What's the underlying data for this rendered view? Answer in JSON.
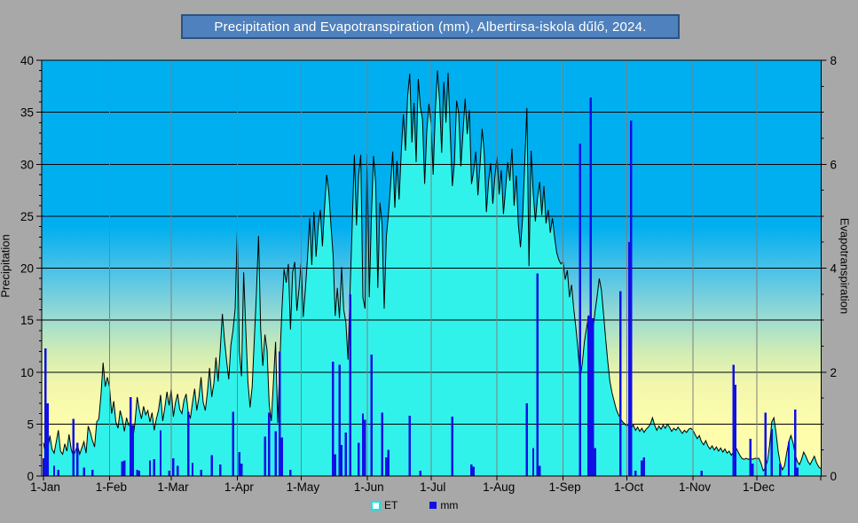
{
  "title": "Precipitation and Evapotranspiration (mm), Albertirsa-iskola dűlő, 2024.",
  "colors": {
    "page_background": "#A8A8A8",
    "title_fill": "#4E81BD",
    "title_border": "#2B5381",
    "title_text": "#FFFFFF",
    "plot_gradient_top": "#00AFF0",
    "plot_gradient_mid": "#9BDBD2",
    "plot_gradient_bottom": "#FDFDAC",
    "et_area_fill": "#31F2EA",
    "et_area_outline": "#000000",
    "precip_bar": "#1010E6",
    "h_gridline": "#000000",
    "v_gridline": "#7F7F7F",
    "axis_text": "#000000"
  },
  "legend": {
    "items": [
      {
        "label": "ET",
        "swatch": "cyan-outline-square"
      },
      {
        "label": "mm",
        "swatch": "blue-solid-square"
      }
    ]
  },
  "chart_data": {
    "type": "combo-area-bar",
    "title": "Precipitation and Evapotranspiration (mm), Albertirsa-iskola dűlő, 2024.",
    "x_axis": {
      "unit": "day of year 2024",
      "days_in_year": 366,
      "tick_days": [
        1,
        32,
        61,
        92,
        122,
        153,
        183,
        214,
        245,
        275,
        306,
        336
      ],
      "tick_labels": [
        "1-Jan",
        "1-Feb",
        "1-Mar",
        "1-Apr",
        "1-May",
        "1-Jun",
        "1-Jul",
        "1-Aug",
        "1-Sep",
        "1-Oct",
        "1-Nov",
        "1-Dec"
      ]
    },
    "y_left": {
      "label": "Precipitation",
      "min": 0,
      "max": 40,
      "major_ticks": [
        0,
        5,
        10,
        15,
        20,
        25,
        30,
        35,
        40
      ],
      "minor_step": 1,
      "gridlines": [
        5,
        10,
        15,
        20,
        25,
        30,
        35
      ]
    },
    "y_right": {
      "label": "Evapotranspiration",
      "min": 0,
      "max": 8,
      "major_ticks": [
        0,
        2,
        4,
        6,
        8
      ],
      "minor_step": 0.5
    },
    "series": [
      {
        "name": "ET",
        "type": "area",
        "axis": "right",
        "daily_values": [
          0.64,
          0.42,
          0.52,
          0.78,
          0.52,
          0.44,
          0.66,
          0.88,
          0.48,
          0.42,
          0.62,
          0.48,
          0.8,
          0.52,
          0.38,
          0.48,
          0.6,
          0.42,
          0.54,
          0.66,
          0.44,
          0.96,
          0.84,
          0.68,
          0.56,
          1.04,
          1.1,
          1.56,
          2.18,
          1.72,
          1.9,
          1.72,
          1.2,
          1.44,
          1.04,
          0.92,
          1.26,
          1.1,
          0.86,
          1.12,
          0.98,
          1.06,
          0.72,
          1.04,
          1.52,
          1.28,
          1.1,
          1.34,
          1.18,
          1.26,
          1.04,
          1.22,
          0.88,
          1.1,
          1.26,
          1.56,
          1.06,
          1.32,
          1.62,
          1.36,
          1.68,
          1.14,
          1.42,
          1.58,
          1.28,
          1.2,
          1.46,
          1.58,
          1.22,
          1.12,
          1.42,
          1.68,
          1.26,
          1.52,
          1.9,
          1.42,
          1.26,
          1.62,
          2.08,
          1.52,
          1.78,
          2.28,
          1.82,
          2.42,
          3.12,
          2.62,
          2.22,
          1.86,
          2.52,
          2.8,
          3.22,
          4.68,
          2.4,
          1.92,
          3.92,
          2.82,
          1.82,
          1.32,
          1.72,
          2.62,
          3.52,
          4.62,
          2.82,
          2.12,
          2.72,
          2.42,
          1.38,
          1.06,
          1.82,
          2.58,
          1.02,
          2.22,
          3.22,
          3.98,
          3.72,
          4.08,
          2.82,
          3.92,
          4.12,
          3.18,
          3.6,
          4.1,
          3.06,
          3.6,
          4.2,
          4.96,
          4.06,
          5.08,
          4.22,
          4.8,
          5.12,
          4.42,
          5.18,
          5.8,
          5.46,
          4.82,
          4.26,
          3.08,
          3.62,
          3.04,
          4.02,
          3.2,
          2.96,
          2.24,
          3.58,
          4.86,
          6.18,
          4.82,
          5.78,
          6.18,
          3.44,
          3.22,
          6.2,
          3.44,
          5.02,
          6.16,
          5.64,
          3.62,
          5.26,
          4.84,
          3.22,
          4.6,
          5.04,
          5.6,
          6.24,
          5.16,
          6.06,
          5.32,
          6.22,
          6.96,
          6.26,
          7.3,
          7.74,
          6.42,
          7.18,
          6.04,
          7.64,
          7.1,
          6.86,
          5.62,
          6.64,
          7.16,
          6.78,
          5.8,
          7.02,
          7.8,
          7.24,
          6.22,
          7.58,
          6.8,
          7.76,
          6.62,
          5.58,
          6.04,
          7.22,
          6.98,
          5.96,
          6.6,
          7.26,
          6.58,
          7.04,
          5.62,
          5.86,
          6.24,
          5.4,
          5.98,
          6.68,
          6.2,
          5.08,
          5.66,
          6.02,
          5.24,
          5.76,
          6.16,
          5.42,
          5.88,
          5.04,
          5.52,
          6.04,
          5.68,
          6.3,
          5.2,
          5.78,
          4.84,
          4.4,
          4.96,
          6.02,
          7.08,
          4.04,
          6.26,
          5.44,
          4.9,
          5.36,
          5.66,
          5.02,
          5.58,
          4.86,
          5.12,
          4.68,
          4.96,
          4.6,
          4.3,
          4.16,
          4.08,
          4.12,
          3.78,
          3.96,
          3.44,
          3.68,
          3.22,
          2.86,
          2.44,
          1.88,
          2.16,
          2.58,
          2.84,
          3.08,
          3.04,
          2.8,
          3.16,
          3.46,
          3.8,
          3.58,
          3.12,
          2.64,
          2.2,
          1.82,
          1.6,
          1.44,
          1.28,
          1.18,
          1.1,
          1.04,
          1.0,
          0.96,
          1.0,
          0.92,
          0.98,
          0.88,
          0.94,
          0.86,
          0.92,
          0.84,
          0.9,
          0.94,
          1.0,
          1.12,
          0.98,
          0.88,
          0.96,
          0.9,
          0.98,
          0.92,
          1.0,
          0.94,
          0.86,
          0.92,
          0.88,
          0.94,
          0.88,
          0.82,
          0.88,
          0.84,
          0.9,
          0.92,
          0.88,
          0.8,
          0.72,
          0.78,
          0.66,
          0.6,
          0.68,
          0.58,
          0.52,
          0.58,
          0.5,
          0.56,
          0.48,
          0.54,
          0.46,
          0.52,
          0.44,
          0.48,
          0.4,
          0.46,
          0.56,
          0.48,
          0.4,
          0.34,
          0.32,
          0.34,
          0.32,
          0.34,
          0.32,
          0.34,
          0.34,
          0.34,
          0.24,
          0.1,
          0.16,
          0.3,
          0.6,
          1.04,
          1.12,
          0.84,
          0.48,
          0.24,
          0.12,
          0.2,
          0.44,
          0.66,
          0.78,
          0.64,
          0.42,
          0.28,
          0.22,
          0.32,
          0.46,
          0.38,
          0.28,
          0.22,
          0.3,
          0.38,
          0.26,
          0.18,
          0.14
        ]
      },
      {
        "name": "mm",
        "type": "bar",
        "axis": "left",
        "points": [
          [
            1,
            1.7
          ],
          [
            2,
            12.3
          ],
          [
            3,
            7.0
          ],
          [
            6,
            1.0
          ],
          [
            8,
            0.6
          ],
          [
            15,
            5.5
          ],
          [
            17,
            3.2
          ],
          [
            20,
            0.8
          ],
          [
            24,
            0.6
          ],
          [
            38,
            1.4
          ],
          [
            39,
            1.5
          ],
          [
            42,
            7.6
          ],
          [
            43,
            4.9
          ],
          [
            45,
            0.6
          ],
          [
            46,
            0.5
          ],
          [
            51,
            1.5
          ],
          [
            53,
            1.6
          ],
          [
            56,
            4.4
          ],
          [
            60,
            0.5
          ],
          [
            62,
            1.7
          ],
          [
            64,
            1.0
          ],
          [
            69,
            6.2
          ],
          [
            71,
            1.3
          ],
          [
            75,
            0.6
          ],
          [
            80,
            2.0
          ],
          [
            84,
            1.1
          ],
          [
            90,
            6.2
          ],
          [
            93,
            2.3
          ],
          [
            94,
            1.2
          ],
          [
            105,
            3.8
          ],
          [
            107,
            6.1
          ],
          [
            110,
            4.3
          ],
          [
            112,
            12.0
          ],
          [
            113,
            3.7
          ],
          [
            117,
            0.6
          ],
          [
            137,
            11.0
          ],
          [
            138,
            2.1
          ],
          [
            140,
            10.7
          ],
          [
            141,
            3.0
          ],
          [
            143,
            4.2
          ],
          [
            145,
            17.5
          ],
          [
            149,
            3.2
          ],
          [
            151,
            6.0
          ],
          [
            152,
            5.4
          ],
          [
            155,
            11.7
          ],
          [
            160,
            6.1
          ],
          [
            162,
            1.8
          ],
          [
            163,
            2.5
          ],
          [
            173,
            5.8
          ],
          [
            178,
            0.5
          ],
          [
            193,
            5.7
          ],
          [
            202,
            1.1
          ],
          [
            203,
            0.9
          ],
          [
            228,
            7.0
          ],
          [
            231,
            2.7
          ],
          [
            233,
            19.5
          ],
          [
            234,
            1.0
          ],
          [
            253,
            32.0
          ],
          [
            257,
            15.4
          ],
          [
            258,
            36.4
          ],
          [
            259,
            15.2
          ],
          [
            260,
            2.7
          ],
          [
            272,
            17.8
          ],
          [
            276,
            22.5
          ],
          [
            277,
            34.2
          ],
          [
            279,
            0.5
          ],
          [
            282,
            1.5
          ],
          [
            283,
            1.8
          ],
          [
            310,
            0.5
          ],
          [
            325,
            10.7
          ],
          [
            326,
            8.8
          ],
          [
            333,
            3.6
          ],
          [
            334,
            1.2
          ],
          [
            340,
            6.1
          ],
          [
            343,
            4.5
          ],
          [
            347,
            1.2
          ],
          [
            351,
            3.3
          ],
          [
            354,
            6.4
          ],
          [
            355,
            0.8
          ]
        ]
      }
    ]
  },
  "left_axis_title": "Precipitation",
  "right_axis_title": "Evapotranspiration"
}
